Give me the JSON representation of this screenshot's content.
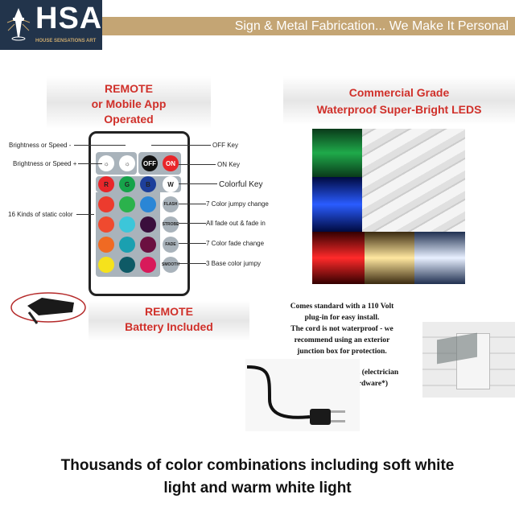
{
  "header": {
    "logo_text": "HSA",
    "logo_subtitle": "HOUSE SENSATIONS ART",
    "tagline": "Sign & Metal Fabrication... We Make It Personal"
  },
  "remote_panel": {
    "line1": "REMOTE",
    "line2": "or Mobile App",
    "line3": "Operated"
  },
  "led_panel": {
    "line1": "Commercial Grade",
    "line2": "Waterproof Super-Bright LEDS"
  },
  "battery_panel": {
    "line1": "REMOTE",
    "line2": "Battery Included"
  },
  "remote": {
    "labels_left": [
      "Brightness or Speed -",
      "Brightness or Speed +",
      "16 Kinds of static color"
    ],
    "labels_right": [
      "OFF Key",
      "ON Key",
      "Colorful Key",
      "7 Color jumpy change",
      "All fade out & fade in",
      "7 Color fade change",
      "3 Base color jumpy"
    ],
    "keys": {
      "off": "OFF",
      "on": "ON",
      "r": "R",
      "g": "G",
      "b": "B",
      "w": "W",
      "flash": "FLASH",
      "strobe": "STROBE",
      "fade": "FADE",
      "smooth": "SMOOTH"
    },
    "colors": [
      "#e8262a",
      "#16a34a",
      "#1d4fb0",
      "#ec3b2e",
      "#2bb24c",
      "#2a86d6",
      "#ef4a2f",
      "#3cc6d9",
      "#3a0f3c",
      "#f06a23",
      "#1aa0b0",
      "#6b1040",
      "#f5e21c",
      "#0e5a66",
      "#d81a5a"
    ]
  },
  "power": {
    "lines1": [
      "Comes standard with a 110 Volt",
      "plug-in for easy install.",
      "The cord is not waterproof - we",
      "recommend using an exterior",
      "junction box for protection."
    ],
    "lines2": [
      "or can be hardwired in (electrician",
      "required for the hardware*)"
    ]
  },
  "footer": {
    "line1": "Thousands of color combinations including soft white",
    "line2": "light and warm white light"
  }
}
